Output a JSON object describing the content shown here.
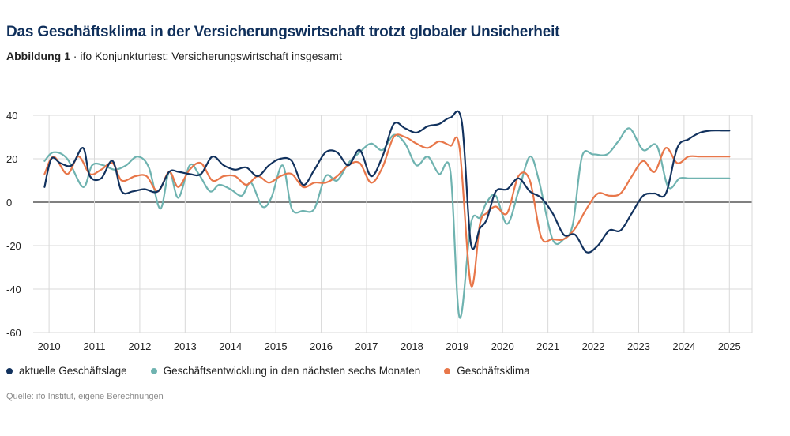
{
  "header": {
    "title": "Das Geschäftsklima in der Versicherungswirtschaft trotzt globaler Unsicherheit",
    "figure_label": "Abbildung 1",
    "figure_sep": " · ",
    "subtitle": "ifo Konjunkturtest: Versicherungswirtschaft insgesamt"
  },
  "source": "Quelle: ifo Institut, eigene Berechnungen",
  "colors": {
    "lage": "#12325e",
    "erwartung": "#6fb3b0",
    "klima": "#e8774a",
    "grid": "#d9d9d9",
    "zero": "#000000"
  },
  "chart_data": {
    "type": "line",
    "xlim": [
      2009.65,
      2025.5
    ],
    "ylim": [
      -60,
      40
    ],
    "yticks": [
      -60,
      -40,
      -20,
      0,
      20,
      40
    ],
    "xticks": [
      2010,
      2011,
      2012,
      2013,
      2014,
      2015,
      2016,
      2017,
      2018,
      2019,
      2020,
      2021,
      2022,
      2023,
      2024,
      2025
    ],
    "legend_position": "bottom",
    "grid": true,
    "series": [
      {
        "name": "aktuelle Geschäftslage",
        "color": "#12325e",
        "x": [
          2009.9,
          2010.05,
          2010.25,
          2010.5,
          2010.75,
          2010.9,
          2011.15,
          2011.4,
          2011.6,
          2011.85,
          2012.1,
          2012.4,
          2012.65,
          2012.85,
          2013.1,
          2013.35,
          2013.6,
          2013.85,
          2014.1,
          2014.35,
          2014.6,
          2014.85,
          2015.1,
          2015.35,
          2015.6,
          2015.85,
          2016.1,
          2016.35,
          2016.6,
          2016.85,
          2017.1,
          2017.35,
          2017.6,
          2017.85,
          2018.1,
          2018.35,
          2018.6,
          2018.85,
          2019.1,
          2019.3,
          2019.5,
          2019.65,
          2019.85,
          2020.1,
          2020.35,
          2020.6,
          2020.85,
          2021.1,
          2021.35,
          2021.6,
          2021.85,
          2022.1,
          2022.35,
          2022.6,
          2022.85,
          2023.1,
          2023.35,
          2023.6,
          2023.85,
          2024.1,
          2024.35,
          2024.6,
          2024.85,
          2025.0
        ],
        "y": [
          7,
          20,
          18,
          17,
          25,
          12,
          11,
          19,
          5,
          5,
          6,
          5,
          14,
          14,
          13,
          13,
          21,
          17,
          15,
          16,
          12,
          17,
          20,
          19,
          8,
          15,
          23,
          23,
          17,
          24,
          12,
          21,
          36,
          34,
          32,
          35,
          36,
          39,
          37,
          -19,
          -12,
          -8,
          5,
          6,
          11,
          5,
          2,
          -5,
          -15,
          -15,
          -23,
          -20,
          -13,
          -13,
          -5,
          3,
          4,
          4,
          25,
          29,
          32,
          33,
          33,
          33
        ]
      },
      {
        "name": "Geschäftsentwicklung in den nächsten sechs Monaten",
        "color": "#6fb3b0",
        "x": [
          2009.9,
          2010.1,
          2010.4,
          2010.75,
          2010.95,
          2011.2,
          2011.45,
          2011.7,
          2011.95,
          2012.2,
          2012.45,
          2012.65,
          2012.85,
          2013.1,
          2013.3,
          2013.55,
          2013.75,
          2014.0,
          2014.25,
          2014.45,
          2014.7,
          2014.9,
          2015.15,
          2015.35,
          2015.6,
          2015.85,
          2016.1,
          2016.35,
          2016.6,
          2016.85,
          2017.1,
          2017.35,
          2017.6,
          2017.85,
          2018.1,
          2018.35,
          2018.6,
          2018.85,
          2019.05,
          2019.3,
          2019.5,
          2019.65,
          2019.85,
          2020.1,
          2020.35,
          2020.6,
          2020.8,
          2021.1,
          2021.35,
          2021.55,
          2021.75,
          2022.0,
          2022.3,
          2022.55,
          2022.8,
          2023.1,
          2023.4,
          2023.65,
          2023.9,
          2024.1,
          2024.35,
          2024.6,
          2024.85,
          2025.0
        ],
        "y": [
          19,
          23,
          20,
          7,
          17,
          17,
          15,
          17,
          21,
          16,
          -3,
          14,
          2,
          17,
          13,
          5,
          8,
          6,
          3,
          9,
          -2,
          2,
          17,
          -3,
          -4,
          -3,
          12,
          10,
          18,
          23,
          27,
          24,
          31,
          27,
          17,
          21,
          13,
          14,
          -53,
          -10,
          -7,
          0,
          3,
          -10,
          5,
          21,
          10,
          -17,
          -17,
          -10,
          21,
          22,
          22,
          28,
          34,
          24,
          26,
          7,
          11,
          11,
          11,
          11,
          11,
          11
        ]
      },
      {
        "name": "Geschäftsklima",
        "color": "#e8774a",
        "x": [
          2009.9,
          2010.1,
          2010.4,
          2010.65,
          2010.9,
          2011.15,
          2011.4,
          2011.6,
          2011.9,
          2012.15,
          2012.4,
          2012.65,
          2012.85,
          2013.1,
          2013.35,
          2013.6,
          2013.85,
          2014.1,
          2014.35,
          2014.6,
          2014.85,
          2015.1,
          2015.35,
          2015.6,
          2015.85,
          2016.1,
          2016.35,
          2016.6,
          2016.85,
          2017.1,
          2017.35,
          2017.6,
          2017.85,
          2018.1,
          2018.35,
          2018.6,
          2018.85,
          2019.05,
          2019.3,
          2019.5,
          2019.65,
          2019.85,
          2020.1,
          2020.35,
          2020.6,
          2020.85,
          2021.1,
          2021.35,
          2021.6,
          2021.85,
          2022.1,
          2022.35,
          2022.6,
          2022.85,
          2023.1,
          2023.35,
          2023.6,
          2023.85,
          2024.1,
          2024.35,
          2024.6,
          2024.85,
          2025.0
        ],
        "y": [
          13,
          21,
          13,
          21,
          13,
          15,
          18,
          10,
          12,
          12,
          5,
          14,
          7,
          15,
          18,
          10,
          12,
          12,
          8,
          12,
          9,
          12,
          13,
          7,
          9,
          9,
          12,
          17,
          18,
          9,
          16,
          30,
          30,
          27,
          25,
          28,
          26,
          25,
          -38,
          -10,
          -5,
          -2,
          -5,
          12,
          10,
          -16,
          -17,
          -17,
          -12,
          -3,
          4,
          3,
          4,
          12,
          19,
          14,
          25,
          18,
          21,
          21,
          21,
          21,
          21
        ]
      }
    ]
  }
}
